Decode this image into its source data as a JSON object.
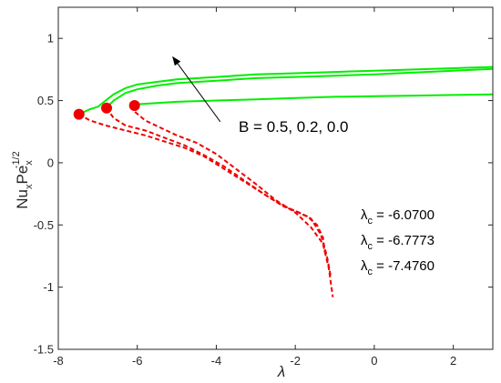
{
  "chart_data": {
    "type": "line",
    "title": "",
    "xlabel": "λ",
    "ylabel": {
      "base1": "Nu",
      "sub1": "x",
      "base2": "Pe",
      "sub2": "x",
      "sup": "-1/2"
    },
    "xlim": [
      -8,
      3
    ],
    "ylim": [
      -1.5,
      1.25
    ],
    "xticks": [
      -8,
      -6,
      -4,
      -2,
      0,
      2
    ],
    "yticks": [
      -1.5,
      -1,
      -0.5,
      0,
      0.5,
      1
    ],
    "xtick_labels": [
      "-8",
      "-6",
      "-4",
      "-2",
      "0",
      "2"
    ],
    "ytick_labels": [
      "-1.5",
      "-1",
      "-0.5",
      "0",
      "0.5",
      "1"
    ],
    "grid": false,
    "colors": {
      "upper": "#00ee00",
      "lower": "#ee0000",
      "axis": "#262626"
    },
    "series": [
      {
        "branch": "upper",
        "critical": [
          -6.07,
          0.46
        ],
        "points": [
          [
            -6.07,
            0.46
          ],
          [
            -6.0,
            0.47
          ],
          [
            -5.5,
            0.48
          ],
          [
            -5.0,
            0.49
          ],
          [
            -4.0,
            0.5
          ],
          [
            -3.0,
            0.51
          ],
          [
            -2.0,
            0.52
          ],
          [
            -1.0,
            0.53
          ],
          [
            0.0,
            0.535
          ],
          [
            1.0,
            0.54
          ],
          [
            2.0,
            0.545
          ],
          [
            3.0,
            0.55
          ]
        ]
      },
      {
        "branch": "upper",
        "critical": [
          -6.7773,
          0.44
        ],
        "points": [
          [
            -6.7773,
            0.44
          ],
          [
            -6.6,
            0.5
          ],
          [
            -6.3,
            0.56
          ],
          [
            -6.0,
            0.59
          ],
          [
            -5.5,
            0.62
          ],
          [
            -5.0,
            0.64
          ],
          [
            -4.0,
            0.66
          ],
          [
            -3.0,
            0.68
          ],
          [
            -2.0,
            0.69
          ],
          [
            -1.0,
            0.7
          ],
          [
            0.0,
            0.71
          ],
          [
            1.0,
            0.725
          ],
          [
            2.0,
            0.74
          ],
          [
            3.0,
            0.755
          ]
        ]
      },
      {
        "branch": "upper",
        "critical": [
          -7.476,
          0.39
        ],
        "points": [
          [
            -7.476,
            0.39
          ],
          [
            -7.2,
            0.43
          ],
          [
            -7.0,
            0.45
          ],
          [
            -6.8,
            0.5
          ],
          [
            -6.6,
            0.55
          ],
          [
            -6.3,
            0.6
          ],
          [
            -6.0,
            0.63
          ],
          [
            -5.5,
            0.65
          ],
          [
            -5.0,
            0.67
          ],
          [
            -4.0,
            0.69
          ],
          [
            -3.0,
            0.71
          ],
          [
            -2.0,
            0.72
          ],
          [
            -1.0,
            0.73
          ],
          [
            0.0,
            0.74
          ],
          [
            1.0,
            0.75
          ],
          [
            2.0,
            0.76
          ],
          [
            3.0,
            0.77
          ]
        ]
      },
      {
        "branch": "lower",
        "critical": [
          -6.07,
          0.46
        ],
        "points": [
          [
            -6.07,
            0.46
          ],
          [
            -6.1,
            0.42
          ],
          [
            -5.8,
            0.34
          ],
          [
            -5.4,
            0.28
          ],
          [
            -5.0,
            0.22
          ],
          [
            -4.5,
            0.16
          ],
          [
            -4.0,
            0.07
          ],
          [
            -3.5,
            -0.05
          ],
          [
            -3.0,
            -0.17
          ],
          [
            -2.5,
            -0.3
          ],
          [
            -2.0,
            -0.4
          ],
          [
            -1.6,
            -0.52
          ],
          [
            -1.3,
            -0.65
          ],
          [
            -1.15,
            -0.85
          ],
          [
            -1.05,
            -1.08
          ]
        ]
      },
      {
        "branch": "lower",
        "critical": [
          -6.7773,
          0.44
        ],
        "points": [
          [
            -6.7773,
            0.44
          ],
          [
            -6.6,
            0.36
          ],
          [
            -6.3,
            0.3
          ],
          [
            -5.8,
            0.26
          ],
          [
            -5.3,
            0.2
          ],
          [
            -4.8,
            0.14
          ],
          [
            -4.3,
            0.06
          ],
          [
            -3.8,
            -0.03
          ],
          [
            -3.3,
            -0.14
          ],
          [
            -2.8,
            -0.25
          ],
          [
            -2.3,
            -0.35
          ],
          [
            -1.9,
            -0.4
          ],
          [
            -1.6,
            -0.45
          ],
          [
            -1.35,
            -0.58
          ],
          [
            -1.2,
            -0.75
          ],
          [
            -1.1,
            -0.92
          ]
        ]
      },
      {
        "branch": "lower",
        "critical": [
          -7.476,
          0.39
        ],
        "points": [
          [
            -7.476,
            0.39
          ],
          [
            -7.2,
            0.34
          ],
          [
            -6.8,
            0.3
          ],
          [
            -6.3,
            0.26
          ],
          [
            -5.8,
            0.22
          ],
          [
            -5.3,
            0.17
          ],
          [
            -4.8,
            0.12
          ],
          [
            -4.3,
            0.05
          ],
          [
            -3.8,
            -0.05
          ],
          [
            -3.3,
            -0.15
          ],
          [
            -2.8,
            -0.25
          ],
          [
            -2.4,
            -0.33
          ],
          [
            -2.0,
            -0.39
          ],
          [
            -1.7,
            -0.43
          ],
          [
            -1.45,
            -0.5
          ],
          [
            -1.3,
            -0.6
          ],
          [
            -1.25,
            -0.72
          ]
        ]
      }
    ],
    "annotations": {
      "arrow": {
        "from": [
          -3.9,
          0.33
        ],
        "to": [
          -5.1,
          0.85
        ]
      },
      "arrow_label": "B = 0.5, 0.2, 0.0",
      "lambda_c_symbol": "λ",
      "lambda_c_sub": "c",
      "lambda_c_values": [
        "-6.0700",
        "-6.7773",
        "-7.4760"
      ]
    }
  }
}
